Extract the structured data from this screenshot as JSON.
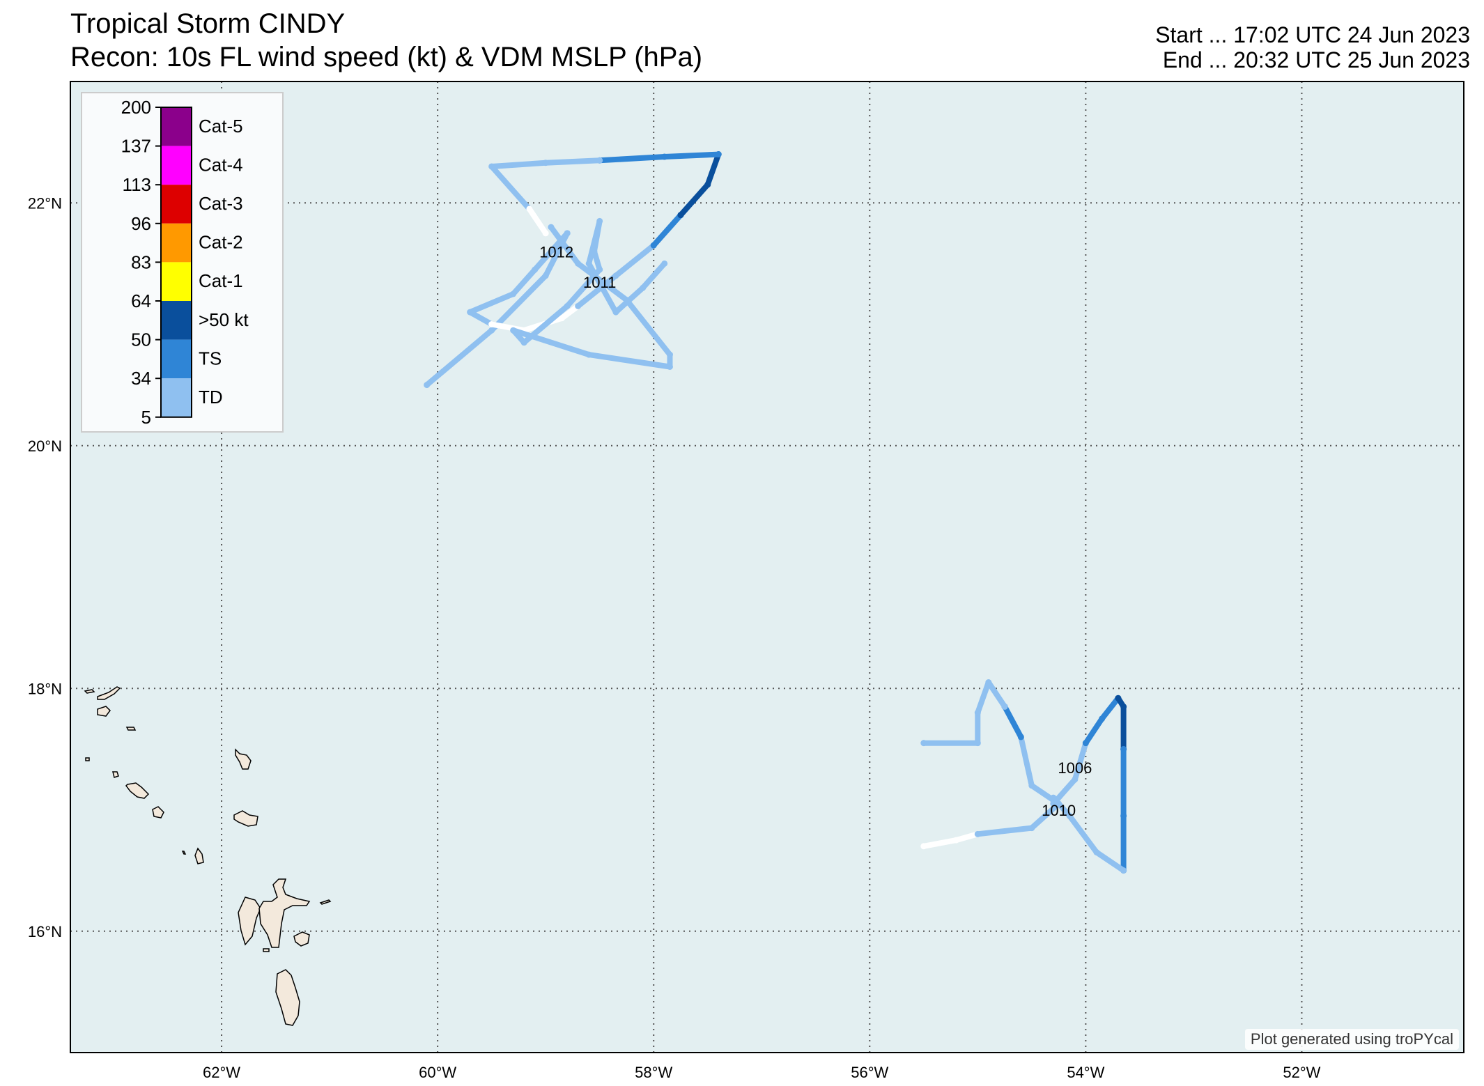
{
  "title": {
    "line1": "Tropical Storm CINDY",
    "line2": "Recon: 10s FL wind speed (kt) & VDM MSLP (hPa)"
  },
  "time": {
    "start": "Start ... 17:02 UTC 24 Jun 2023",
    "end": "End ... 20:32 UTC 25 Jun 2023"
  },
  "credit": "Plot generated using troPYcal",
  "map": {
    "extent": {
      "lon": [
        -63.4,
        -50.5
      ],
      "lat": [
        15.0,
        23.0
      ]
    },
    "ocean_color": "#e3eff1",
    "land_color": "#f3e9dc",
    "grid_color": "#555555",
    "lon_ticks": [
      {
        "value": -62,
        "label": "62°W"
      },
      {
        "value": -60,
        "label": "60°W"
      },
      {
        "value": -58,
        "label": "58°W"
      },
      {
        "value": -56,
        "label": "56°W"
      },
      {
        "value": -54,
        "label": "54°W"
      },
      {
        "value": -52,
        "label": "52°W"
      }
    ],
    "lat_ticks": [
      {
        "value": 22,
        "label": "22°N"
      },
      {
        "value": 20,
        "label": "20°N"
      },
      {
        "value": 18,
        "label": "18°N"
      },
      {
        "value": 16,
        "label": "16°N"
      }
    ]
  },
  "legend": {
    "ticks": [
      "200",
      "137",
      "113",
      "96",
      "83",
      "64",
      "50",
      "34",
      "5"
    ],
    "categories": [
      {
        "label": "Cat-5",
        "color": "#8b008b"
      },
      {
        "label": "Cat-4",
        "color": "#ff00ff"
      },
      {
        "label": "Cat-3",
        "color": "#dd0000"
      },
      {
        "label": "Cat-2",
        "color": "#ff9900"
      },
      {
        "label": "Cat-1",
        "color": "#ffff00"
      },
      {
        "label": ">50 kt",
        "color": "#0a4f9c"
      },
      {
        "label": "TS",
        "color": "#2f85d6"
      },
      {
        "label": "TD",
        "color": "#8fc0f0"
      }
    ]
  },
  "wind_colors": {
    "white": "#ffffff",
    "td": "#8fc0f0",
    "ts": "#2f85d6",
    "strong": "#0a4f9c"
  },
  "chart_data": {
    "type": "scatter",
    "title": "Tropical Storm CINDY",
    "subtitle": "Recon: 10s FL wind speed (kt) & VDM MSLP (hPa)",
    "flight_tracks": [
      {
        "segments": [
          {
            "category": "td",
            "points": [
              [
                -60.1,
                20.5
              ],
              [
                -59.5,
                20.95
              ],
              [
                -59.0,
                21.4
              ],
              [
                -58.8,
                21.75
              ]
            ]
          },
          {
            "category": "td",
            "points": [
              [
                -58.8,
                21.75
              ],
              [
                -59.1,
                21.45
              ],
              [
                -59.3,
                21.25
              ],
              [
                -59.7,
                21.1
              ],
              [
                -59.5,
                21.0
              ]
            ]
          },
          {
            "category": "white",
            "points": [
              [
                -59.5,
                21.0
              ],
              [
                -59.2,
                20.95
              ],
              [
                -58.85,
                21.05
              ],
              [
                -58.7,
                21.15
              ]
            ]
          },
          {
            "category": "td",
            "points": [
              [
                -58.7,
                21.15
              ],
              [
                -58.35,
                21.4
              ],
              [
                -58.0,
                21.65
              ]
            ]
          },
          {
            "category": "ts",
            "points": [
              [
                -58.0,
                21.65
              ],
              [
                -57.75,
                21.9
              ]
            ]
          },
          {
            "category": "strong",
            "points": [
              [
                -57.75,
                21.9
              ],
              [
                -57.5,
                22.15
              ],
              [
                -57.4,
                22.4
              ]
            ]
          },
          {
            "category": "ts",
            "points": [
              [
                -57.4,
                22.4
              ],
              [
                -57.9,
                22.38
              ],
              [
                -58.5,
                22.35
              ]
            ]
          },
          {
            "category": "td",
            "points": [
              [
                -58.5,
                22.35
              ],
              [
                -59.0,
                22.33
              ],
              [
                -59.5,
                22.3
              ],
              [
                -59.15,
                21.95
              ]
            ]
          },
          {
            "category": "white",
            "points": [
              [
                -59.15,
                21.95
              ],
              [
                -59.0,
                21.75
              ]
            ]
          },
          {
            "category": "td",
            "points": [
              [
                -58.95,
                21.8
              ],
              [
                -58.7,
                21.5
              ],
              [
                -58.25,
                21.2
              ],
              [
                -57.85,
                20.75
              ],
              [
                -57.85,
                20.65
              ],
              [
                -58.6,
                20.75
              ],
              [
                -59.3,
                20.95
              ],
              [
                -59.2,
                20.85
              ]
            ]
          },
          {
            "category": "td",
            "points": [
              [
                -59.2,
                20.85
              ],
              [
                -58.8,
                21.15
              ],
              [
                -58.5,
                21.45
              ],
              [
                -58.55,
                21.6
              ],
              [
                -58.5,
                21.85
              ],
              [
                -58.6,
                21.5
              ],
              [
                -58.35,
                21.1
              ],
              [
                -58.1,
                21.3
              ],
              [
                -57.9,
                21.5
              ]
            ]
          }
        ],
        "vdm_mslp": [
          {
            "lon": -58.9,
            "lat": 21.55,
            "label": "1012"
          },
          {
            "lon": -58.5,
            "lat": 21.3,
            "label": "1011"
          }
        ]
      },
      {
        "segments": [
          {
            "category": "white",
            "points": [
              [
                -55.5,
                16.7
              ],
              [
                -55.2,
                16.75
              ],
              [
                -55.0,
                16.8
              ]
            ]
          },
          {
            "category": "td",
            "points": [
              [
                -55.0,
                16.8
              ],
              [
                -54.5,
                16.85
              ],
              [
                -54.25,
                17.05
              ],
              [
                -54.5,
                17.2
              ],
              [
                -54.6,
                17.6
              ],
              [
                -54.75,
                17.85
              ]
            ]
          },
          {
            "category": "ts",
            "points": [
              [
                -54.75,
                17.85
              ],
              [
                -54.6,
                17.6
              ]
            ]
          },
          {
            "category": "td",
            "points": [
              [
                -54.75,
                17.85
              ],
              [
                -54.9,
                18.05
              ],
              [
                -55.0,
                17.8
              ],
              [
                -55.0,
                17.55
              ],
              [
                -55.5,
                17.55
              ]
            ]
          },
          {
            "category": "td",
            "points": [
              [
                -54.3,
                17.05
              ],
              [
                -54.1,
                17.25
              ],
              [
                -54.0,
                17.55
              ]
            ]
          },
          {
            "category": "ts",
            "points": [
              [
                -54.0,
                17.55
              ],
              [
                -53.85,
                17.75
              ],
              [
                -53.7,
                17.92
              ]
            ]
          },
          {
            "category": "strong",
            "points": [
              [
                -53.7,
                17.92
              ],
              [
                -53.65,
                17.85
              ],
              [
                -53.65,
                17.5
              ]
            ]
          },
          {
            "category": "ts",
            "points": [
              [
                -53.65,
                17.5
              ],
              [
                -53.65,
                16.95
              ],
              [
                -53.65,
                16.5
              ]
            ]
          },
          {
            "category": "td",
            "points": [
              [
                -53.65,
                16.5
              ],
              [
                -53.9,
                16.65
              ],
              [
                -54.15,
                16.95
              ],
              [
                -54.3,
                17.1
              ]
            ]
          }
        ],
        "vdm_mslp": [
          {
            "lon": -54.1,
            "lat": 17.3,
            "label": "1006"
          },
          {
            "lon": -54.25,
            "lat": 16.95,
            "label": "1010"
          }
        ]
      }
    ],
    "xlabel": "",
    "ylabel": ""
  }
}
